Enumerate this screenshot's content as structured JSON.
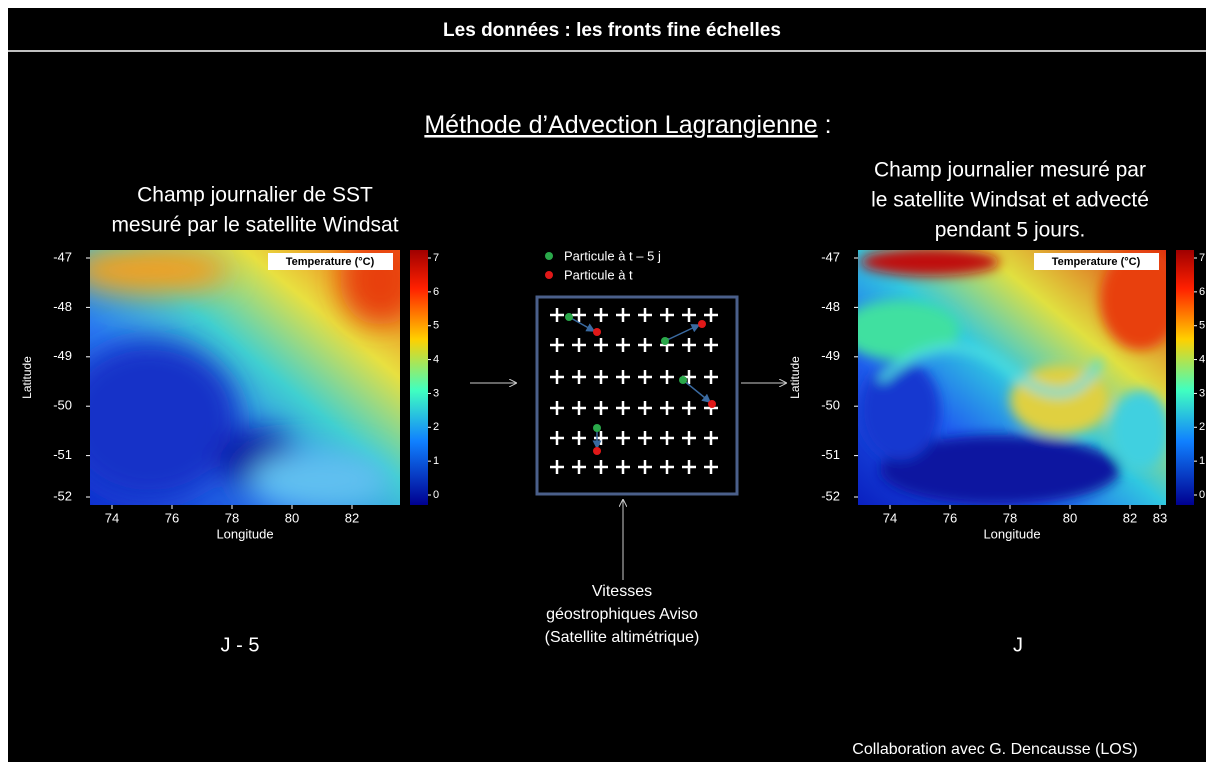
{
  "header": {
    "title": "Les données : les fronts fine échelles"
  },
  "subtitle": {
    "text": "Méthode d’Advection Lagrangienne",
    "suffix": " :"
  },
  "panels": [
    {
      "caption": [
        "Champ journalier de SST",
        "mesuré par le satellite Windsat"
      ],
      "yticks": [
        -47,
        -48,
        -49,
        -50,
        -51,
        -52
      ],
      "xticks": [
        74,
        76,
        78,
        80,
        82
      ],
      "xlabel": "Longitude",
      "ylabel": "Latitude",
      "colorbar_label": "Temperature (°C)",
      "colorbar_ticks": [
        7,
        6,
        5,
        4,
        3,
        2,
        1,
        0
      ],
      "day": "J - 5"
    },
    {
      "caption": [
        "Champ journalier mesuré par",
        "le satellite Windsat et advecté",
        "pendant 5 jours."
      ],
      "yticks": [
        -47,
        -48,
        -49,
        -50,
        -51,
        -52
      ],
      "xticks": [
        74,
        76,
        78,
        80,
        82,
        83
      ],
      "xlabel": "Longitude",
      "ylabel": "Latitude",
      "colorbar_label": "Temperature (°C)",
      "colorbar_ticks": [
        7,
        6,
        5,
        4,
        3,
        2,
        1,
        0
      ],
      "day": "J"
    }
  ],
  "diagram": {
    "legend": [
      "Particule à t – 5 j",
      "Particule à t"
    ],
    "source": [
      "Vitesses",
      "géostrophiques Aviso",
      "(Satellite altimétrique)"
    ]
  },
  "footer": "Collaboration avec G. Dencausse (LOS)"
}
